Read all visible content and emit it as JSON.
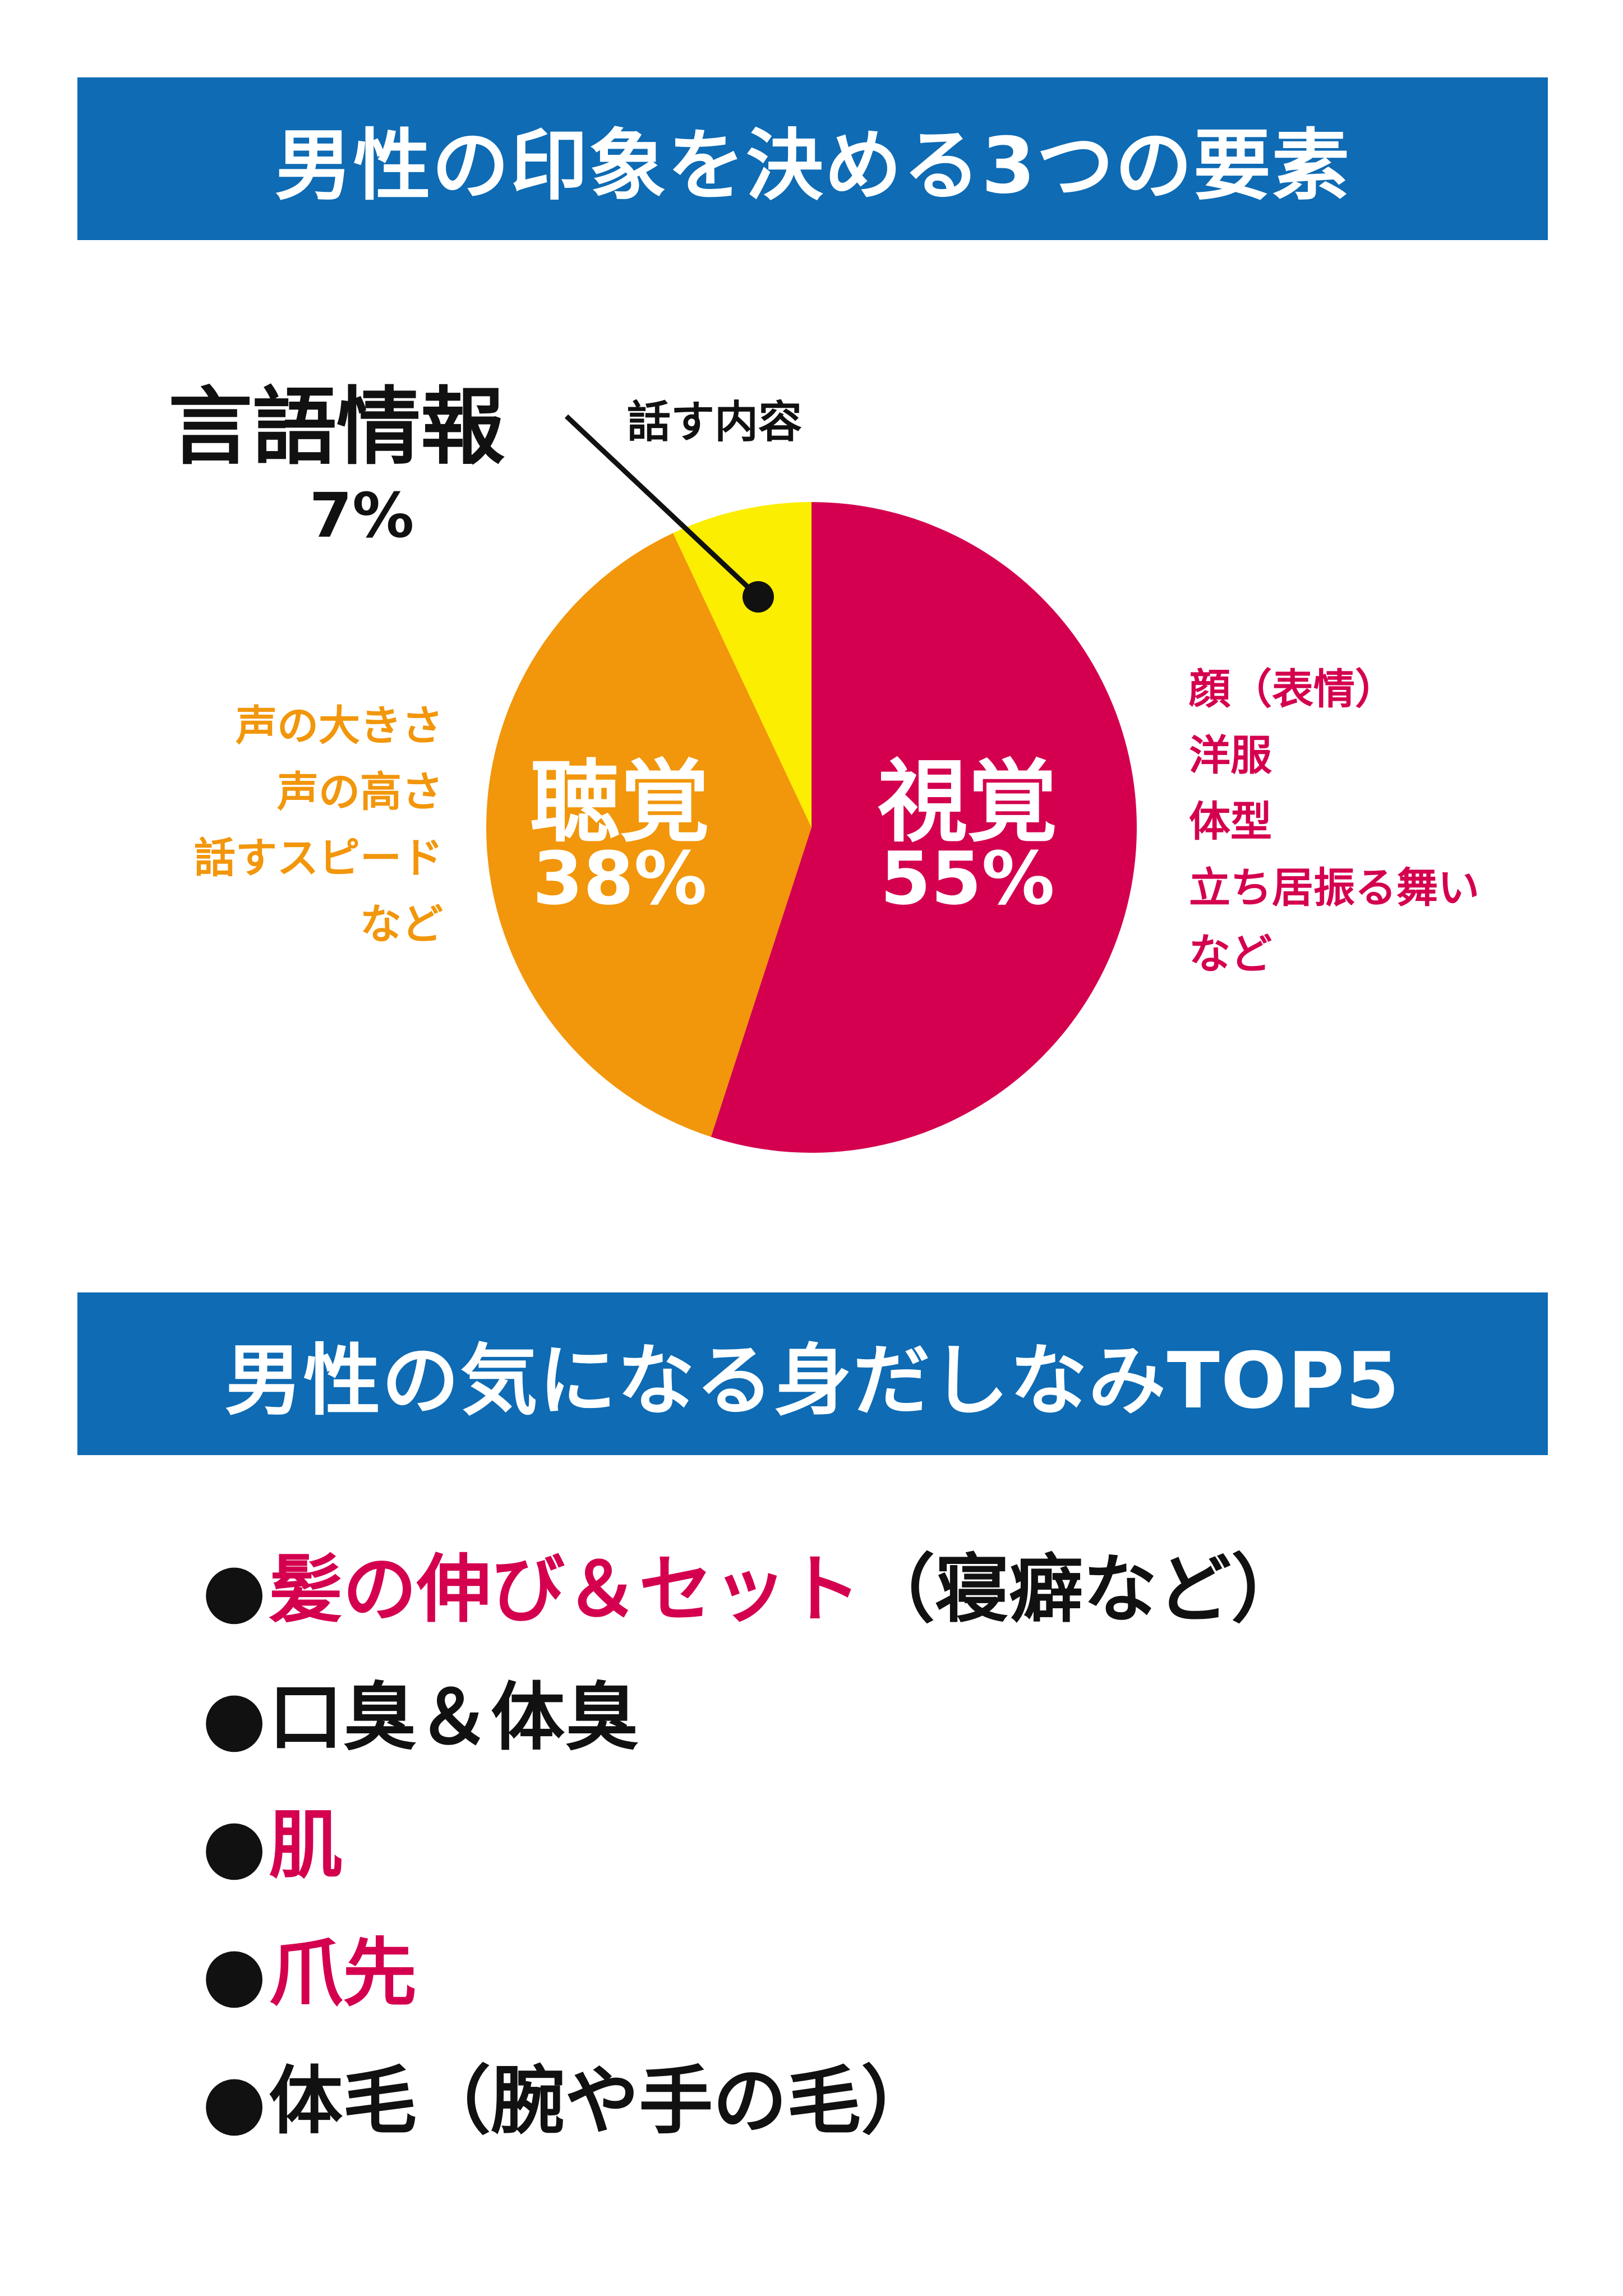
{
  "section1": {
    "title": "男性の印象を決める3つの要素"
  },
  "section2": {
    "title": "男性の気になる身だしなみTOP5"
  },
  "chart_data": {
    "type": "pie",
    "slices": [
      {
        "label": "視覚",
        "value": 55,
        "display": "55%",
        "color": "#d4004f",
        "details": [
          "顔（表情）",
          "洋服",
          "体型",
          "立ち居振る舞い",
          "など"
        ]
      },
      {
        "label": "聴覚",
        "value": 38,
        "display": "38%",
        "color": "#f2960b",
        "details": [
          "声の大きさ",
          "声の高さ",
          "話すスピード",
          "など"
        ]
      },
      {
        "label": "言語情報",
        "value": 7,
        "display": "7%",
        "color": "#fcee00",
        "details": [
          "話す内容"
        ]
      }
    ],
    "start_angle": "12 o'clock",
    "direction": "clockwise"
  },
  "top5": {
    "bullet": "●",
    "items": [
      {
        "main": "髪の伸び＆セット",
        "sub": "（寝癖など）",
        "highlight": true
      },
      {
        "main": "口臭＆体臭",
        "sub": "",
        "highlight": false
      },
      {
        "main": "肌",
        "sub": "",
        "highlight": true
      },
      {
        "main": "爪先",
        "sub": "",
        "highlight": true
      },
      {
        "main": "体毛（腕や手の毛）",
        "sub": "",
        "highlight": false
      }
    ]
  }
}
